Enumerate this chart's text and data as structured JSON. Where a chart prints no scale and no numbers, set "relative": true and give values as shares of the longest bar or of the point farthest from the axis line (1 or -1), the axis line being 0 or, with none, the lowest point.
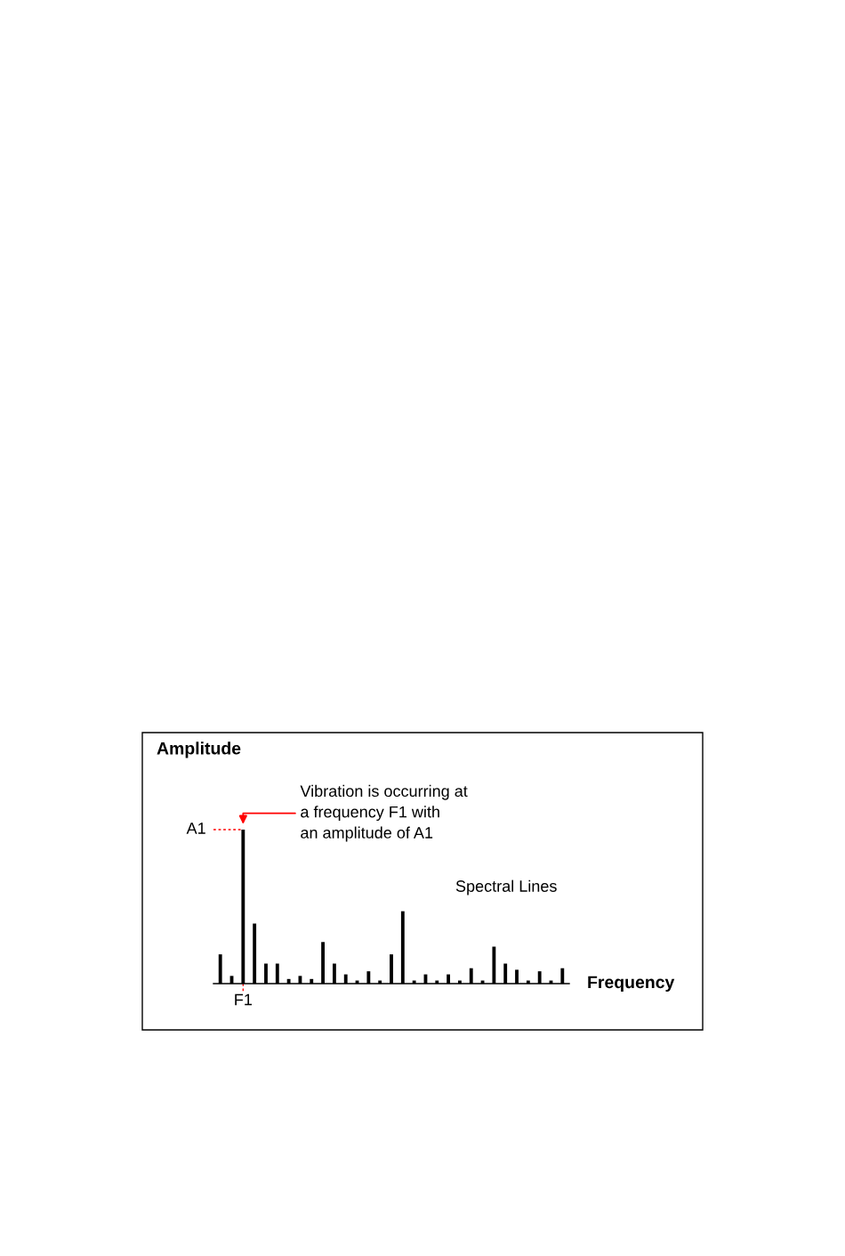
{
  "chart_data": {
    "type": "bar",
    "relative": true,
    "color": "#000000",
    "ylabel": "Amplitude",
    "xlabel": "Frequency",
    "categories": [
      null,
      null,
      "F1",
      null,
      null,
      null,
      null,
      null,
      null,
      null,
      null,
      null,
      null,
      null,
      null,
      null,
      null,
      null,
      null,
      null,
      null,
      null,
      null,
      null,
      null,
      null,
      null,
      null,
      null,
      null,
      null
    ],
    "values": [
      0.19,
      0.05,
      1.0,
      0.39,
      0.13,
      0.13,
      0.03,
      0.05,
      0.03,
      0.27,
      0.13,
      0.06,
      0.02,
      0.08,
      0.02,
      0.19,
      0.47,
      0.02,
      0.06,
      0.02,
      0.06,
      0.02,
      0.1,
      0.02,
      0.24,
      0.13,
      0.09,
      0.02,
      0.08,
      0.02,
      0.1
    ],
    "annotations": [
      {
        "text": "A1",
        "x": "F1",
        "y": 1.0
      },
      {
        "text": "Vibration is occurring at\na frequency F1 with\nan amplitude of A1",
        "x": "F1",
        "y": 1.0
      },
      "Spectral Lines"
    ],
    "grid": false,
    "legend": false
  }
}
